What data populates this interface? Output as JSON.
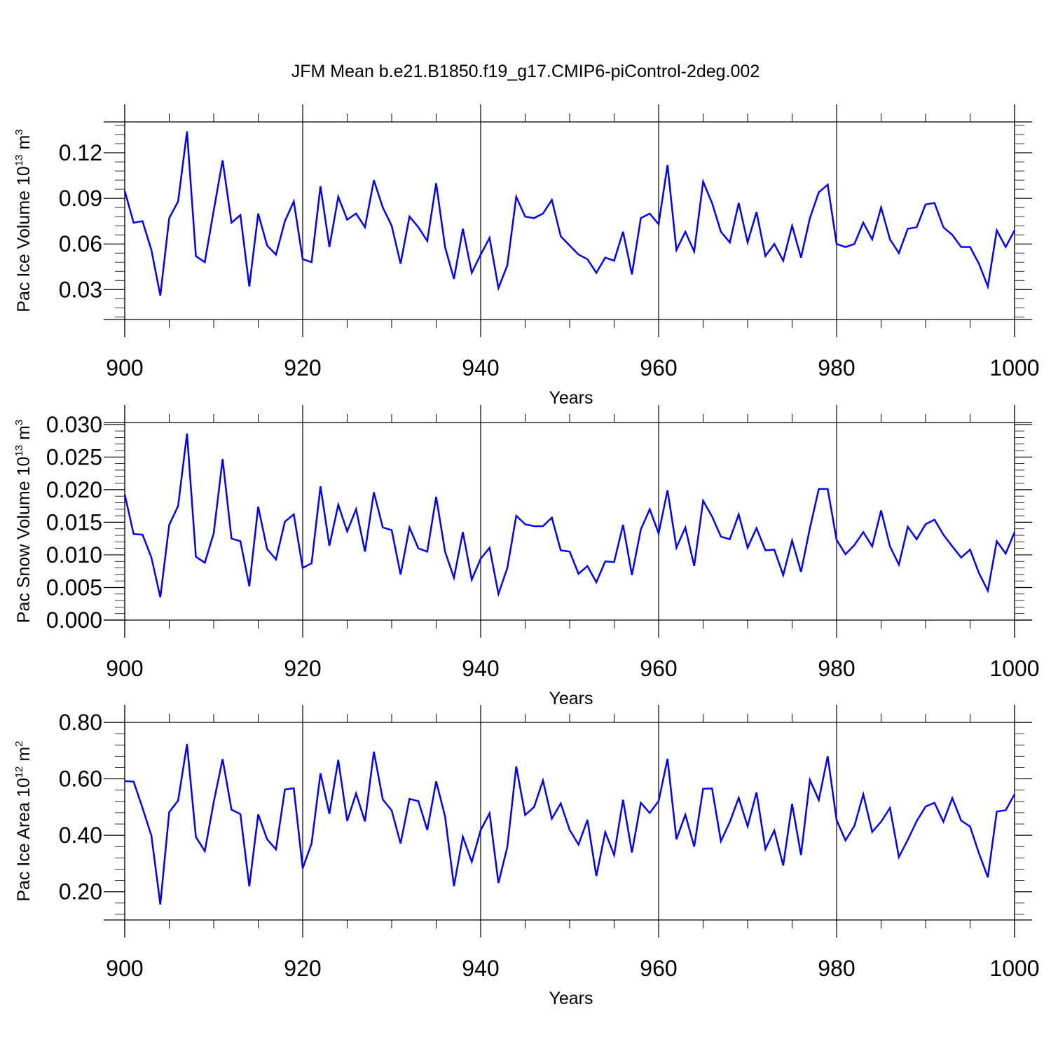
{
  "figure_title": "JFM Mean b.e21.B1850.f19_g17.CMIP6-piControl-2deg.002",
  "colors": {
    "series": "#0000ff",
    "axis": "#000000",
    "grid": "#000000"
  },
  "chart_data": [
    {
      "type": "line",
      "title": "JFM Mean b.e21.B1850.f19_g17.CMIP6-piControl-2deg.002",
      "xlabel": "Years",
      "ylabel": "Pac Ice Volume 10",
      "ylabel_exponent": "13",
      "ylabel_unit": "m",
      "ylabel_unit_exponent": "3",
      "xlim": [
        900,
        1000
      ],
      "ylim": [
        0.0103,
        0.1403
      ],
      "xticks": [
        "900",
        "920",
        "940",
        "960",
        "980",
        "1000"
      ],
      "yticks": [
        "0.03",
        "0.06",
        "0.09",
        "0.12"
      ],
      "yticks_values": [
        0.03,
        0.06,
        0.09,
        0.12
      ],
      "y_minor_step": 0.006,
      "grid": "vertical dashed at major x ticks",
      "x": [
        900,
        901,
        902,
        903,
        904,
        905,
        906,
        907,
        908,
        909,
        910,
        911,
        912,
        913,
        914,
        915,
        916,
        917,
        918,
        919,
        920,
        921,
        922,
        923,
        924,
        925,
        926,
        927,
        928,
        929,
        930,
        931,
        932,
        933,
        934,
        935,
        936,
        937,
        938,
        939,
        940,
        941,
        942,
        943,
        944,
        945,
        946,
        947,
        948,
        949,
        950,
        951,
        952,
        953,
        954,
        955,
        956,
        957,
        958,
        959,
        960,
        961,
        962,
        963,
        964,
        965,
        966,
        967,
        968,
        969,
        970,
        971,
        972,
        973,
        974,
        975,
        976,
        977,
        978,
        979,
        980,
        981,
        982,
        983,
        984,
        985,
        986,
        987,
        988,
        989,
        990,
        991,
        992,
        993,
        994,
        995,
        996,
        997,
        998,
        999,
        1000
      ],
      "series": [
        {
          "name": "Pac Ice Volume",
          "values": [
            0.095,
            0.074,
            0.075,
            0.056,
            0.026,
            0.077,
            0.088,
            0.134,
            0.052,
            0.048,
            0.082,
            0.115,
            0.074,
            0.079,
            0.032,
            0.08,
            0.059,
            0.053,
            0.075,
            0.088,
            0.05,
            0.048,
            0.098,
            0.058,
            0.091,
            0.076,
            0.08,
            0.071,
            0.102,
            0.084,
            0.072,
            0.047,
            0.078,
            0.071,
            0.062,
            0.1,
            0.058,
            0.037,
            0.07,
            0.041,
            0.053,
            0.064,
            0.031,
            0.046,
            0.091,
            0.078,
            0.077,
            0.08,
            0.089,
            0.065,
            0.059,
            0.053,
            0.05,
            0.041,
            0.051,
            0.049,
            0.068,
            0.04,
            0.077,
            0.08,
            0.073,
            0.112,
            0.056,
            0.068,
            0.055,
            0.101,
            0.087,
            0.068,
            0.061,
            0.087,
            0.061,
            0.081,
            0.052,
            0.06,
            0.049,
            0.072,
            0.051,
            0.077,
            0.094,
            0.099,
            0.06,
            0.058,
            0.06,
            0.074,
            0.063,
            0.084,
            0.063,
            0.054,
            0.07,
            0.071,
            0.086,
            0.087,
            0.071,
            0.066,
            0.058,
            0.058,
            0.047,
            0.032,
            0.069,
            0.058,
            0.069
          ]
        }
      ]
    },
    {
      "type": "line",
      "xlabel": "Years",
      "ylabel": "Pac Snow Volume 10",
      "ylabel_exponent": "13",
      "ylabel_unit": "m",
      "ylabel_unit_exponent": "3",
      "xlim": [
        900,
        1000
      ],
      "ylim": [
        0.0,
        0.0303
      ],
      "xticks": [
        "900",
        "920",
        "940",
        "960",
        "980",
        "1000"
      ],
      "yticks": [
        "0.000",
        "0.005",
        "0.010",
        "0.015",
        "0.020",
        "0.025",
        "0.030"
      ],
      "yticks_values": [
        0.0,
        0.005,
        0.01,
        0.015,
        0.02,
        0.025,
        0.03
      ],
      "y_minor_step": 0.001,
      "grid": "vertical dashed at major x ticks",
      "x": [
        900,
        901,
        902,
        903,
        904,
        905,
        906,
        907,
        908,
        909,
        910,
        911,
        912,
        913,
        914,
        915,
        916,
        917,
        918,
        919,
        920,
        921,
        922,
        923,
        924,
        925,
        926,
        927,
        928,
        929,
        930,
        931,
        932,
        933,
        934,
        935,
        936,
        937,
        938,
        939,
        940,
        941,
        942,
        943,
        944,
        945,
        946,
        947,
        948,
        949,
        950,
        951,
        952,
        953,
        954,
        955,
        956,
        957,
        958,
        959,
        960,
        961,
        962,
        963,
        964,
        965,
        966,
        967,
        968,
        969,
        970,
        971,
        972,
        973,
        974,
        975,
        976,
        977,
        978,
        979,
        980,
        981,
        982,
        983,
        984,
        985,
        986,
        987,
        988,
        989,
        990,
        991,
        992,
        993,
        994,
        995,
        996,
        997,
        998,
        999,
        1000
      ],
      "series": [
        {
          "name": "Pac Snow Volume",
          "values": [
            0.0193,
            0.0132,
            0.0131,
            0.0096,
            0.0035,
            0.0146,
            0.0175,
            0.0286,
            0.0097,
            0.0088,
            0.0133,
            0.0247,
            0.0125,
            0.0121,
            0.0052,
            0.0174,
            0.0109,
            0.0093,
            0.0151,
            0.0162,
            0.008,
            0.0087,
            0.0205,
            0.0114,
            0.0177,
            0.0136,
            0.017,
            0.0105,
            0.0196,
            0.0142,
            0.0138,
            0.007,
            0.0142,
            0.011,
            0.0105,
            0.0189,
            0.0105,
            0.0065,
            0.0135,
            0.0062,
            0.0094,
            0.0111,
            0.004,
            0.008,
            0.016,
            0.0147,
            0.0144,
            0.0144,
            0.0157,
            0.0107,
            0.0105,
            0.0071,
            0.0083,
            0.0058,
            0.009,
            0.0089,
            0.0146,
            0.0069,
            0.0139,
            0.017,
            0.0133,
            0.0199,
            0.0111,
            0.0142,
            0.0083,
            0.0183,
            0.0159,
            0.0128,
            0.0124,
            0.0162,
            0.0111,
            0.0141,
            0.0107,
            0.0108,
            0.0069,
            0.0122,
            0.0074,
            0.0141,
            0.0201,
            0.0201,
            0.0123,
            0.0101,
            0.0115,
            0.0135,
            0.0113,
            0.0168,
            0.0113,
            0.0085,
            0.0143,
            0.0124,
            0.0147,
            0.0154,
            0.0131,
            0.0113,
            0.0096,
            0.0108,
            0.0072,
            0.0045,
            0.0121,
            0.0102,
            0.0135
          ]
        }
      ]
    },
    {
      "type": "line",
      "xlabel": "Years",
      "ylabel": "Pac Ice Area 10",
      "ylabel_exponent": "12",
      "ylabel_unit": "m",
      "ylabel_unit_exponent": "2",
      "xlim": [
        900,
        1000
      ],
      "ylim": [
        0.1,
        0.8
      ],
      "xticks": [
        "900",
        "920",
        "940",
        "960",
        "980",
        "1000"
      ],
      "yticks": [
        "0.20",
        "0.40",
        "0.60",
        "0.80"
      ],
      "yticks_values": [
        0.2,
        0.4,
        0.6,
        0.8
      ],
      "y_minor_step": 0.04,
      "grid": "vertical dashed at major x ticks",
      "x": [
        900,
        901,
        902,
        903,
        904,
        905,
        906,
        907,
        908,
        909,
        910,
        911,
        912,
        913,
        914,
        915,
        916,
        917,
        918,
        919,
        920,
        921,
        922,
        923,
        924,
        925,
        926,
        927,
        928,
        929,
        930,
        931,
        932,
        933,
        934,
        935,
        936,
        937,
        938,
        939,
        940,
        941,
        942,
        943,
        944,
        945,
        946,
        947,
        948,
        949,
        950,
        951,
        952,
        953,
        954,
        955,
        956,
        957,
        958,
        959,
        960,
        961,
        962,
        963,
        964,
        965,
        966,
        967,
        968,
        969,
        970,
        971,
        972,
        973,
        974,
        975,
        976,
        977,
        978,
        979,
        980,
        981,
        982,
        983,
        984,
        985,
        986,
        987,
        988,
        989,
        990,
        991,
        992,
        993,
        994,
        995,
        996,
        997,
        998,
        999,
        1000
      ],
      "series": [
        {
          "name": "Pac Ice Area",
          "values": [
            0.592,
            0.59,
            0.497,
            0.398,
            0.155,
            0.482,
            0.523,
            0.723,
            0.394,
            0.344,
            0.517,
            0.67,
            0.491,
            0.475,
            0.219,
            0.474,
            0.386,
            0.35,
            0.562,
            0.567,
            0.283,
            0.371,
            0.62,
            0.476,
            0.667,
            0.451,
            0.548,
            0.449,
            0.696,
            0.527,
            0.488,
            0.371,
            0.529,
            0.521,
            0.419,
            0.591,
            0.467,
            0.22,
            0.395,
            0.306,
            0.418,
            0.478,
            0.231,
            0.359,
            0.644,
            0.472,
            0.5,
            0.594,
            0.459,
            0.513,
            0.419,
            0.367,
            0.455,
            0.256,
            0.411,
            0.33,
            0.526,
            0.339,
            0.515,
            0.479,
            0.521,
            0.671,
            0.386,
            0.473,
            0.36,
            0.565,
            0.566,
            0.379,
            0.447,
            0.533,
            0.432,
            0.552,
            0.351,
            0.417,
            0.293,
            0.511,
            0.33,
            0.596,
            0.525,
            0.68,
            0.454,
            0.382,
            0.433,
            0.545,
            0.412,
            0.448,
            0.497,
            0.323,
            0.384,
            0.45,
            0.502,
            0.515,
            0.448,
            0.532,
            0.452,
            0.431,
            0.336,
            0.251,
            0.484,
            0.489,
            0.545
          ]
        }
      ]
    }
  ]
}
